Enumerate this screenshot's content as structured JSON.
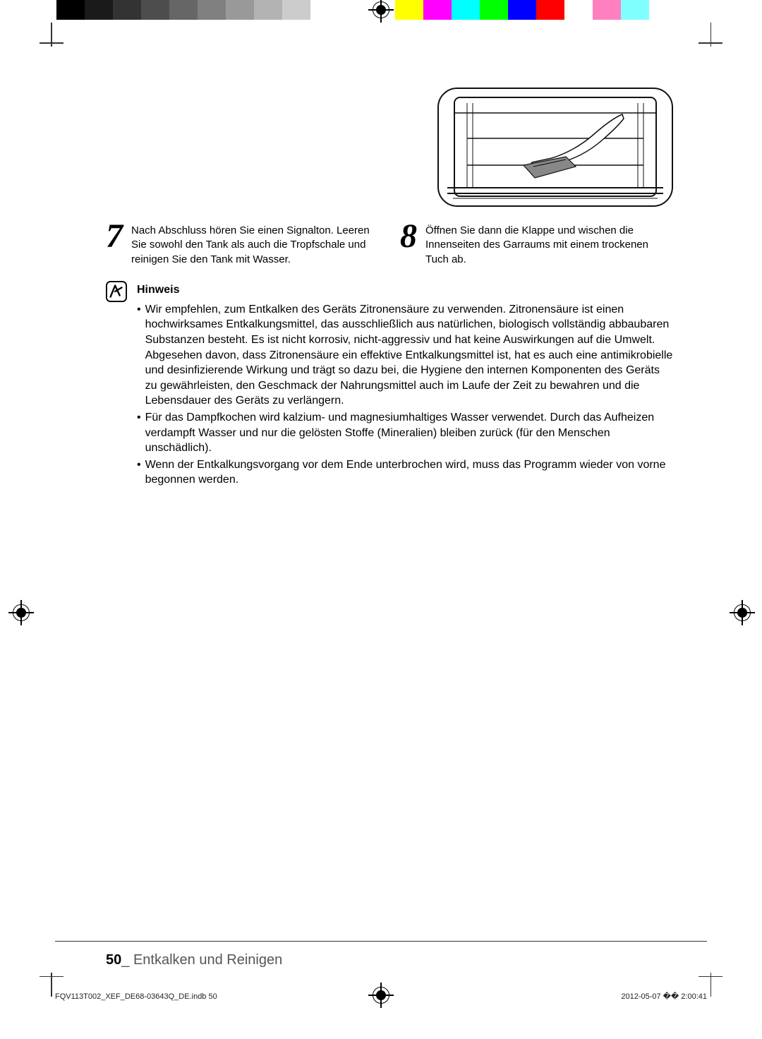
{
  "colorbar": [
    "#000000",
    "#1a1a1a",
    "#333333",
    "#4d4d4d",
    "#666666",
    "#808080",
    "#999999",
    "#b3b3b3",
    "#cccccc",
    "#ffffff",
    "#ffffff",
    "#ffffff",
    "#ffff00",
    "#ff00ff",
    "#00ffff",
    "#00ff00",
    "#0000ff",
    "#ff0000",
    "#ffffff",
    "#ff80c0",
    "#80ffff",
    "#ffffff",
    "#ffffff"
  ],
  "steps": {
    "s7": {
      "num": "7",
      "text": "Nach Abschluss hören Sie einen Signalton. Leeren Sie sowohl den Tank als auch die Tropfschale und reinigen Sie den Tank mit Wasser."
    },
    "s8": {
      "num": "8",
      "text": "Öffnen Sie dann die Klappe und wischen die Innenseiten des Garraums mit einem trockenen Tuch ab."
    }
  },
  "note": {
    "title": "Hinweis",
    "b1": "Wir empfehlen, zum Entkalken des Geräts Zitronensäure zu verwenden. Zitronensäure ist einen hochwirksames Entkalkungsmittel, das ausschließlich aus natürlichen, biologisch vollständig abbaubaren Substanzen besteht. Es ist nicht korrosiv, nicht-aggressiv und hat keine Auswirkungen auf die Umwelt. Abgesehen davon, dass Zitronensäure ein effektive Entkalkungsmittel ist, hat es auch eine antimikrobielle und desinfizierende Wirkung und trägt so dazu bei, die Hygiene den internen Komponenten des Geräts zu gewährleisten, den Geschmack der Nahrungsmittel auch im Laufe der Zeit zu bewahren und die Lebensdauer des Geräts zu verlängern.",
    "b2": "Für das Dampfkochen wird kalzium- und magnesiumhaltiges Wasser verwendet. Durch das Aufheizen verdampft Wasser und nur die gelösten Stoffe (Mineralien) bleiben zurück (für den Menschen unschädlich).",
    "b3": "Wenn der Entkalkungsvorgang vor dem Ende unterbrochen wird, muss das Programm wieder von vorne begonnen werden."
  },
  "footer": {
    "page": "50",
    "sep": "_ ",
    "title": "Entkalken und Reinigen"
  },
  "imprint": {
    "file": "FQV113T002_XEF_DE68-03643Q_DE.indb   50",
    "date": "2012-05-07   �� 2:00:41"
  }
}
